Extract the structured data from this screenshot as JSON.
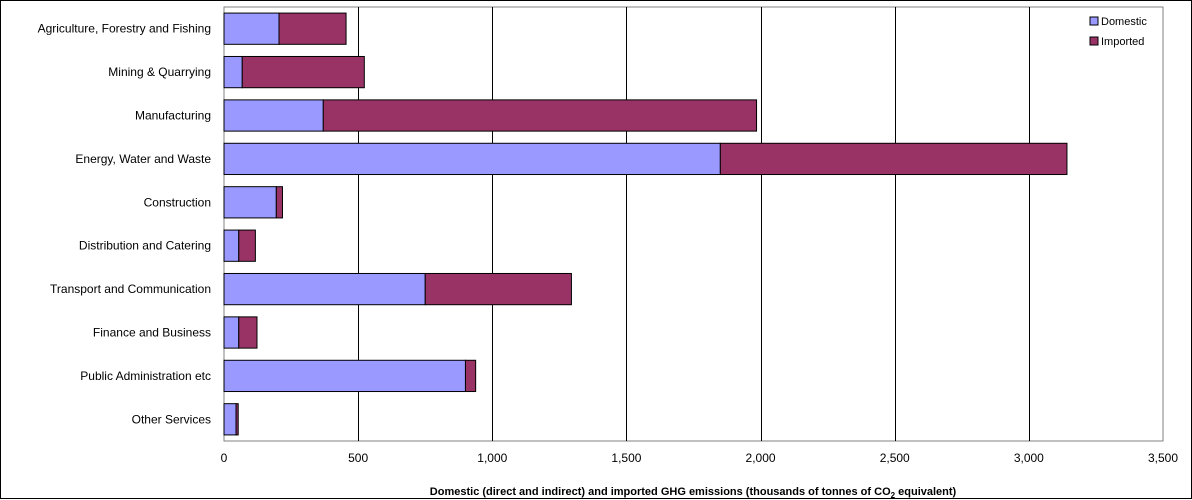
{
  "chart_data": {
    "type": "bar",
    "orientation": "horizontal",
    "stacked": true,
    "categories": [
      "Agriculture, Forestry and Fishing",
      "Mining & Quarrying",
      "Manufacturing",
      "Energy, Water and Waste",
      "Construction",
      "Distribution and Catering",
      "Transport and Communication",
      "Finance and Business",
      "Public Administration etc",
      "Other Services"
    ],
    "series": [
      {
        "name": "Domestic",
        "color": "#9999ff",
        "values": [
          205,
          68,
          370,
          1850,
          195,
          55,
          750,
          55,
          900,
          45
        ]
      },
      {
        "name": "Imported",
        "color": "#993366",
        "values": [
          250,
          455,
          1615,
          1292,
          23,
          62,
          545,
          68,
          38,
          8
        ]
      }
    ],
    "xlim": [
      0,
      3500
    ],
    "xticks": [
      0,
      500,
      1000,
      1500,
      2000,
      2500,
      3000,
      3500
    ],
    "xtick_labels": [
      "0",
      "500",
      "1,000",
      "1,500",
      "2,000",
      "2,500",
      "3,000",
      "3,500"
    ],
    "xlabel_main": "Domestic  (direct and indirect) and imported GHG emissions (thousands  of tonnes of CO",
    "xlabel_sub": "2",
    "xlabel_tail": " equivalent)",
    "grid": "vertical",
    "legend": "top-right"
  }
}
